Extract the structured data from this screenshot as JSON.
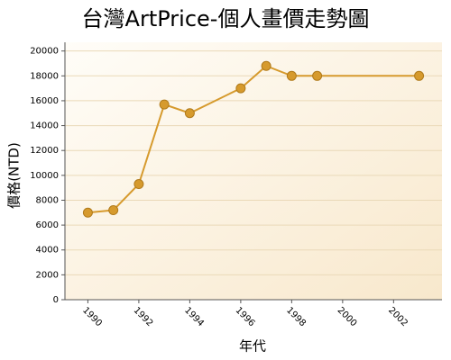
{
  "chart_data": {
    "type": "line",
    "title": "台灣ArtPrice-個人畫價走勢圖",
    "x_label": "年代",
    "y_label": "價格(NTD)",
    "x": [
      1990,
      1991,
      1992,
      1993,
      1994,
      1996,
      1997,
      1998,
      1999,
      2003
    ],
    "series": [
      {
        "name": "價格",
        "color": "#d69a2d",
        "values": [
          7000,
          7200,
          9300,
          15700,
          15000,
          17000,
          18800,
          18000,
          18000,
          18000
        ]
      }
    ],
    "xlim": [
      1989.1,
      2003.9
    ],
    "xticks": [
      1990,
      1992,
      1994,
      1996,
      1998,
      2000,
      2002
    ],
    "ylim": [
      0,
      20700
    ],
    "yticks": [
      0,
      2000,
      4000,
      6000,
      8000,
      10000,
      12000,
      14000,
      16000,
      18000,
      20000
    ],
    "grid": true
  }
}
